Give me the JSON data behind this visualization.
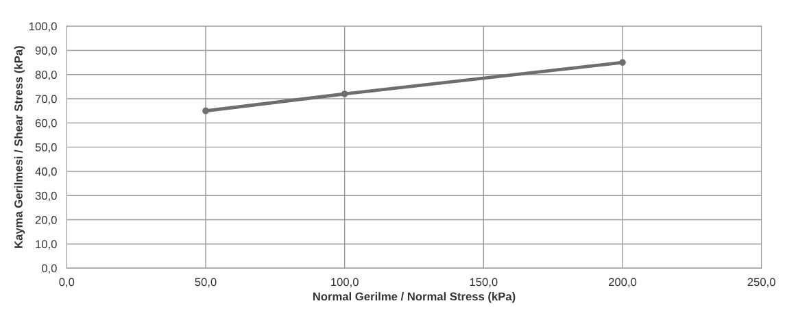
{
  "chart_data": {
    "type": "line",
    "xlabel": "Normal Gerilme / Normal Stress (kPa)",
    "ylabel": "Kayma Gerilmesi / Shear Stress (kPa)",
    "x": [
      50,
      100,
      200
    ],
    "series": [
      {
        "color": "#6e6e6e",
        "values": [
          65,
          72,
          85
        ]
      }
    ],
    "marker": "circle",
    "grid": true,
    "xlim": [
      0,
      250
    ],
    "xticks": [
      {
        "value": 0,
        "label": "0,0"
      },
      {
        "value": 50,
        "label": "50,0"
      },
      {
        "value": 100,
        "label": "100,0"
      },
      {
        "value": 150,
        "label": "150,0"
      },
      {
        "value": 200,
        "label": "200,0"
      },
      {
        "value": 250,
        "label": "250,0"
      }
    ],
    "ylim": [
      0,
      100
    ],
    "yticks": [
      {
        "value": 0,
        "label": "0,0"
      },
      {
        "value": 10,
        "label": "10,0"
      },
      {
        "value": 20,
        "label": "20,0"
      },
      {
        "value": 30,
        "label": "30,0"
      },
      {
        "value": 40,
        "label": "40,0"
      },
      {
        "value": 50,
        "label": "50,0"
      },
      {
        "value": 60,
        "label": "60,0"
      },
      {
        "value": 70,
        "label": "70,0"
      },
      {
        "value": 80,
        "label": "80,0"
      },
      {
        "value": 90,
        "label": "90,0"
      },
      {
        "value": 100,
        "label": "100,0"
      }
    ]
  }
}
